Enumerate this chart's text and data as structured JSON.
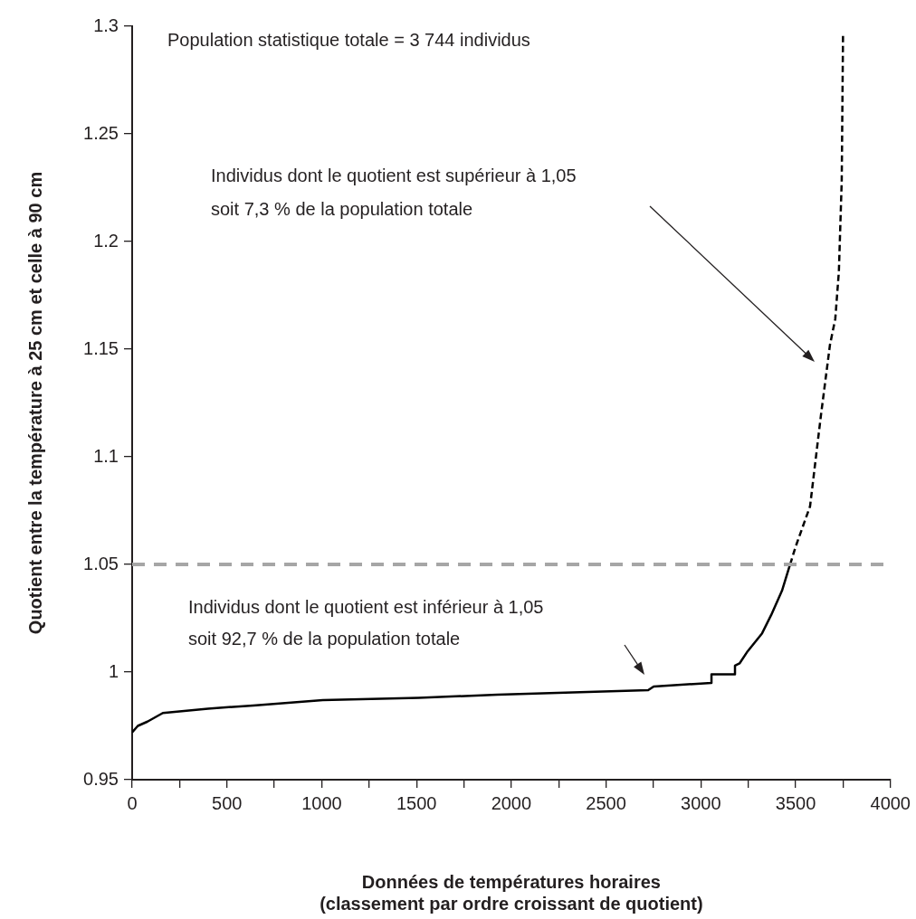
{
  "chart_data": {
    "type": "line",
    "xlabel": "Données de températures horaires\n(classement par ordre croissant de quotient)",
    "ylabel": "Quotient entre la température à 25 cm et celle à 90 cm",
    "xlim": [
      0,
      4000
    ],
    "xticks": [
      0,
      {
        "value": 250,
        "label": null
      },
      500,
      {
        "value": 750,
        "label": null
      },
      1000,
      {
        "value": 1250,
        "label": null
      },
      1500,
      {
        "value": 1750,
        "label": null
      },
      2000,
      {
        "value": 2250,
        "label": null
      },
      2500,
      {
        "value": 2750,
        "label": null
      },
      3000,
      {
        "value": 3250,
        "label": null
      },
      3500,
      {
        "value": 3750,
        "label": null
      },
      4000
    ],
    "ylim": [
      0.95,
      1.3
    ],
    "yticks": [
      0.95,
      1,
      1.05,
      1.1,
      1.15,
      1.2,
      1.25,
      1.3
    ],
    "series": [
      {
        "color": "#000000",
        "line_style": "solid",
        "x": [
          0,
          30,
          81,
          162,
          400,
          639,
          1006,
          1511,
          1926,
          2722,
          2751,
          3056,
          3056,
          3180,
          3180,
          3204,
          3247,
          3323,
          3371,
          3428,
          3466,
          3471
        ],
        "values": [
          0.972,
          0.975,
          0.977,
          0.981,
          0.983,
          0.9845,
          0.987,
          0.988,
          0.9895,
          0.9916,
          0.9933,
          0.995,
          0.999,
          0.999,
          1.003,
          1.004,
          1.0097,
          1.018,
          1.0265,
          1.0378,
          1.0487,
          1.05
        ]
      },
      {
        "color": "#000000",
        "line_style": "dashed",
        "x": [
          3471,
          3499,
          3576,
          3633,
          3681,
          3709,
          3728,
          3743,
          3750
        ],
        "values": [
          1.05,
          1.058,
          1.077,
          1.119,
          1.152,
          1.164,
          1.186,
          1.228,
          1.297
        ]
      }
    ],
    "ref_lines": [
      {
        "axis": "y",
        "value": 1.05,
        "color": "#a6a6a6",
        "line_style": "dashed"
      }
    ],
    "annotations": [
      "Population statistique totale = 3 744 individus",
      "Individus dont le quotient est supérieur à 1,05\nsoit 7,3 % de la population totale",
      "Individus dont le quotient est inférieur à 1,05\nsoit 92,7 % de la population totale"
    ],
    "grid": false,
    "legend": false,
    "marker": "none"
  }
}
